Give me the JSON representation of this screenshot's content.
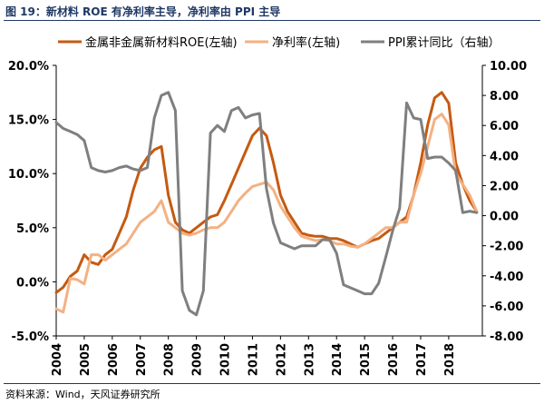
{
  "figure": {
    "title": "图 19：新材料 ROE 有净利率主导，净利率由 PPI 主导",
    "source": "资料来源：Wind，天风证券研究所"
  },
  "colors": {
    "roe": "#c55a11",
    "margin": "#f4b183",
    "ppi": "#7f7f7f"
  },
  "chart_data": {
    "type": "line",
    "legend": [
      "金属非金属新材料ROE(左轴)",
      "净利率(左轴)",
      "PPI累计同比（右轴）"
    ],
    "x_ticks": [
      "2004",
      "2005",
      "2006",
      "2007",
      "2008",
      "2009",
      "2010",
      "2011",
      "2012",
      "2013",
      "2014",
      "2015",
      "2016",
      "2017",
      "2018"
    ],
    "left_axis": {
      "min": -5,
      "max": 20,
      "step": 5,
      "ticks": [
        "-5.0%",
        "0.0%",
        "5.0%",
        "10.0%",
        "15.0%",
        "20.0%"
      ]
    },
    "right_axis": {
      "min": -8,
      "max": 10,
      "step": 2,
      "ticks": [
        "-8.00",
        "-6.00",
        "-4.00",
        "-2.00",
        "0.00",
        "2.00",
        "4.00",
        "6.00",
        "8.00",
        "10.00"
      ]
    },
    "x_range": [
      2004.0,
      2019.2
    ],
    "series": [
      {
        "name": "金属非金属新材料ROE(左轴)",
        "axis": "left",
        "x": [
          2004.0,
          2004.25,
          2004.5,
          2004.75,
          2005.0,
          2005.25,
          2005.5,
          2005.75,
          2006.0,
          2006.25,
          2006.5,
          2006.75,
          2007.0,
          2007.25,
          2007.5,
          2007.75,
          2008.0,
          2008.25,
          2008.5,
          2008.75,
          2009.0,
          2009.25,
          2009.5,
          2009.75,
          2010.0,
          2010.25,
          2010.5,
          2010.75,
          2011.0,
          2011.25,
          2011.5,
          2011.75,
          2012.0,
          2012.25,
          2012.5,
          2012.75,
          2013.0,
          2013.25,
          2013.5,
          2013.75,
          2014.0,
          2014.25,
          2014.5,
          2014.75,
          2015.0,
          2015.25,
          2015.5,
          2015.75,
          2016.0,
          2016.25,
          2016.5,
          2016.75,
          2017.0,
          2017.25,
          2017.5,
          2017.75,
          2018.0,
          2018.25,
          2018.5,
          2018.75,
          2019.0
        ],
        "values": [
          -1.0,
          -0.5,
          0.5,
          1.0,
          2.5,
          1.8,
          1.6,
          2.5,
          3.0,
          4.5,
          6.0,
          8.5,
          10.5,
          11.5,
          12.2,
          12.5,
          8.0,
          5.5,
          4.8,
          4.5,
          5.0,
          5.5,
          6.0,
          6.2,
          7.5,
          9.0,
          10.5,
          12.0,
          13.5,
          14.2,
          13.5,
          11.0,
          8.0,
          6.5,
          5.5,
          4.5,
          4.3,
          4.2,
          4.2,
          4.0,
          4.0,
          3.8,
          3.5,
          3.2,
          3.5,
          3.8,
          4.0,
          4.5,
          5.0,
          5.5,
          6.0,
          8.0,
          11.0,
          14.5,
          17.0,
          17.5,
          16.5,
          11.0,
          9.0,
          7.5,
          6.5
        ]
      },
      {
        "name": "净利率(左轴)",
        "axis": "left",
        "x": [
          2004.0,
          2004.25,
          2004.5,
          2004.75,
          2005.0,
          2005.25,
          2005.5,
          2005.75,
          2006.0,
          2006.25,
          2006.5,
          2006.75,
          2007.0,
          2007.25,
          2007.5,
          2007.75,
          2008.0,
          2008.25,
          2008.5,
          2008.75,
          2009.0,
          2009.25,
          2009.5,
          2009.75,
          2010.0,
          2010.25,
          2010.5,
          2010.75,
          2011.0,
          2011.25,
          2011.5,
          2011.75,
          2012.0,
          2012.25,
          2012.5,
          2012.75,
          2013.0,
          2013.25,
          2013.5,
          2013.75,
          2014.0,
          2014.25,
          2014.5,
          2014.75,
          2015.0,
          2015.25,
          2015.5,
          2015.75,
          2016.0,
          2016.25,
          2016.5,
          2016.75,
          2017.0,
          2017.25,
          2017.5,
          2017.75,
          2018.0,
          2018.25,
          2018.5,
          2018.75,
          2019.0
        ],
        "values": [
          -2.5,
          -2.8,
          0.3,
          0.2,
          -0.2,
          2.5,
          2.5,
          2.0,
          2.5,
          3.0,
          3.5,
          4.5,
          5.5,
          6.0,
          6.5,
          7.5,
          5.5,
          5.0,
          4.5,
          4.3,
          4.5,
          4.8,
          5.0,
          5.0,
          5.5,
          6.5,
          7.5,
          8.2,
          8.8,
          9.0,
          9.2,
          8.5,
          7.0,
          6.0,
          5.0,
          4.2,
          4.0,
          3.8,
          3.9,
          3.8,
          3.5,
          3.5,
          3.3,
          3.2,
          3.5,
          4.0,
          4.5,
          5.0,
          5.0,
          5.5,
          5.5,
          8.0,
          10.0,
          12.5,
          15.0,
          15.5,
          14.5,
          10.0,
          9.0,
          8.0,
          6.5
        ]
      },
      {
        "name": "PPI累计同比（右轴）",
        "axis": "right",
        "x": [
          2004.0,
          2004.25,
          2004.5,
          2004.75,
          2005.0,
          2005.25,
          2005.5,
          2005.75,
          2006.0,
          2006.25,
          2006.5,
          2006.75,
          2007.0,
          2007.25,
          2007.5,
          2007.75,
          2008.0,
          2008.25,
          2008.5,
          2008.75,
          2009.0,
          2009.25,
          2009.5,
          2009.75,
          2010.0,
          2010.25,
          2010.5,
          2010.75,
          2011.0,
          2011.25,
          2011.5,
          2011.75,
          2012.0,
          2012.25,
          2012.5,
          2012.75,
          2013.0,
          2013.25,
          2013.5,
          2013.75,
          2014.0,
          2014.25,
          2014.5,
          2014.75,
          2015.0,
          2015.25,
          2015.5,
          2015.75,
          2016.0,
          2016.25,
          2016.5,
          2016.75,
          2017.0,
          2017.25,
          2017.5,
          2017.75,
          2018.0,
          2018.25,
          2018.5,
          2018.75,
          2019.0
        ],
        "values": [
          6.2,
          5.8,
          5.6,
          5.4,
          5.0,
          3.2,
          3.0,
          2.9,
          3.0,
          3.2,
          3.3,
          3.1,
          3.0,
          3.2,
          6.5,
          8.0,
          8.2,
          7.0,
          -5.0,
          -6.3,
          -6.6,
          -5.0,
          5.5,
          6.0,
          5.6,
          7.0,
          7.2,
          6.5,
          6.7,
          6.8,
          1.8,
          -0.5,
          -1.8,
          -2.0,
          -2.2,
          -2.0,
          -2.0,
          -2.0,
          -1.6,
          -1.6,
          -2.5,
          -4.6,
          -4.8,
          -5.0,
          -5.2,
          -5.2,
          -4.5,
          -2.8,
          -1.0,
          0.5,
          7.5,
          6.5,
          6.4,
          3.8,
          3.9,
          3.9,
          3.5,
          3.0,
          0.2,
          0.3,
          0.2
        ]
      }
    ]
  }
}
